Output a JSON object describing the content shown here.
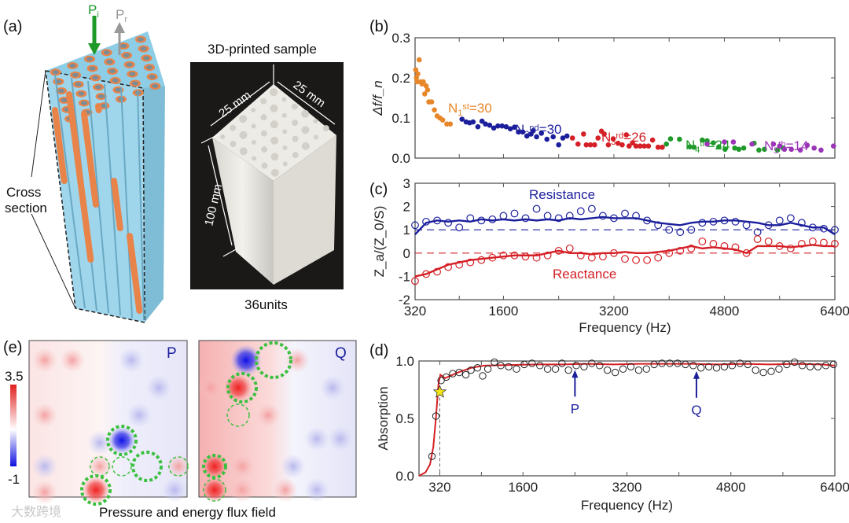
{
  "panel_labels": {
    "a": "(a)",
    "b": "(b)",
    "c": "(c)",
    "d": "(d)",
    "e": "(e)"
  },
  "panel_a": {
    "incident": {
      "base": "P",
      "sub": "i"
    },
    "reflected": {
      "base": "P",
      "sub": "r"
    },
    "cross_section": [
      "Cross",
      "section"
    ],
    "photo_title": "3D-printed sample",
    "dim_width_1": "25 mm",
    "dim_width_2": "25 mm",
    "dim_height": "100 mm",
    "photo_caption": "36units",
    "watermark": "大数跨境"
  },
  "panel_e": {
    "colorbar_max": "3.5",
    "colorbar_min": "-1",
    "map_p_label": "P",
    "map_q_label": "Q",
    "caption": "Pressure and energy flux field"
  },
  "colors": {
    "orange": "#e8862a",
    "blue": "#1c1f9c",
    "red": "#d42026",
    "green": "#1e9a2a",
    "purple": "#9b35b8",
    "resistance": "#1c1f9c",
    "reactance": "#d42026",
    "absorption_line": "#d42026",
    "arrow": "#1c1f9c"
  },
  "chart_data": [
    {
      "id": "b",
      "type": "scatter",
      "ylabel": "Δf/f_n",
      "xlabel": "",
      "xlim": [
        320,
        6400
      ],
      "ylim": [
        0,
        0.3
      ],
      "yticks": [
        "0.0",
        "0.1",
        "0.2",
        "0.3"
      ],
      "series": [
        {
          "name": "1st",
          "label": {
            "base": "N",
            "sub": "1",
            "sup": "st",
            "rest": "=30"
          },
          "color": "#e8862a",
          "points": [
            [
              330,
              0.22
            ],
            [
              340,
              0.2
            ],
            [
              350,
              0.19
            ],
            [
              360,
              0.21
            ],
            [
              380,
              0.245
            ],
            [
              400,
              0.19
            ],
            [
              420,
              0.185
            ],
            [
              440,
              0.19
            ],
            [
              460,
              0.16
            ],
            [
              480,
              0.18
            ],
            [
              500,
              0.17
            ],
            [
              520,
              0.14
            ],
            [
              560,
              0.14
            ],
            [
              600,
              0.12
            ],
            [
              640,
              0.105
            ],
            [
              680,
              0.1
            ],
            [
              720,
              0.095
            ],
            [
              780,
              0.085
            ],
            [
              830,
              0.085
            ]
          ]
        },
        {
          "name": "2nd",
          "label": {
            "base": "N",
            "sub": "2",
            "sup": "nd",
            "rest": "=30"
          },
          "color": "#1c1f9c",
          "points": [
            [
              1000,
              0.097
            ],
            [
              1060,
              0.09
            ],
            [
              1110,
              0.088
            ],
            [
              1160,
              0.09
            ],
            [
              1230,
              0.078
            ],
            [
              1290,
              0.092
            ],
            [
              1340,
              0.085
            ],
            [
              1400,
              0.082
            ],
            [
              1460,
              0.075
            ],
            [
              1520,
              0.08
            ],
            [
              1580,
              0.08
            ],
            [
              1640,
              0.078
            ],
            [
              1700,
              0.073
            ],
            [
              1760,
              0.077
            ],
            [
              1820,
              0.065
            ],
            [
              1880,
              0.065
            ],
            [
              1940,
              0.055
            ],
            [
              2000,
              0.06
            ],
            [
              2030,
              0.068
            ],
            [
              2080,
              0.053
            ],
            [
              2150,
              0.062
            ],
            [
              2230,
              0.047
            ],
            [
              2320,
              0.053
            ],
            [
              2400,
              0.033
            ],
            [
              2460,
              0.05
            ],
            [
              2520,
              0.055
            ]
          ]
        },
        {
          "name": "3rd",
          "label": {
            "base": "N",
            "sub": "3",
            "sup": "rd",
            "rest": "=26"
          },
          "color": "#d42026",
          "points": [
            [
              2600,
              0.05
            ],
            [
              2680,
              0.035
            ],
            [
              2760,
              0.06
            ],
            [
              2800,
              0.033
            ],
            [
              2860,
              0.033
            ],
            [
              2920,
              0.033
            ],
            [
              2970,
              0.05
            ],
            [
              3020,
              0.067
            ],
            [
              3060,
              0.06
            ],
            [
              3120,
              0.033
            ],
            [
              3190,
              0.048
            ],
            [
              3260,
              0.037
            ],
            [
              3320,
              0.033
            ],
            [
              3380,
              0.058
            ],
            [
              3420,
              0.03
            ],
            [
              3470,
              0.038
            ],
            [
              3520,
              0.03
            ],
            [
              3580,
              0.03
            ],
            [
              3640,
              0.03
            ],
            [
              3700,
              0.03
            ],
            [
              3760,
              0.045
            ],
            [
              3840,
              0.027
            ],
            [
              3900,
              0.027
            ]
          ]
        },
        {
          "name": "4th",
          "label": {
            "base": "N",
            "sub": "4",
            "sup": "th",
            "rest": "=24"
          },
          "color": "#1e9a2a",
          "points": [
            [
              3960,
              0.035
            ],
            [
              4020,
              0.048
            ],
            [
              4150,
              0.047
            ],
            [
              4300,
              0.028
            ],
            [
              4360,
              0.027
            ],
            [
              4480,
              0.045
            ],
            [
              4550,
              0.043
            ],
            [
              4640,
              0.038
            ],
            [
              4720,
              0.028
            ],
            [
              4810,
              0.022
            ],
            [
              4950,
              0.025
            ],
            [
              5010,
              0.022
            ],
            [
              5080,
              0.025
            ],
            [
              5230,
              0.037
            ],
            [
              5300,
              0.02
            ],
            [
              5380,
              0.022
            ],
            [
              5570,
              0.02
            ],
            [
              5650,
              0.025
            ]
          ]
        },
        {
          "name": "5th",
          "label": {
            "base": "N",
            "sub": "5",
            "sup": "th",
            "rest": "=14"
          },
          "color": "#9b35b8",
          "points": [
            [
              4550,
              0.035
            ],
            [
              4800,
              0.04
            ],
            [
              4930,
              0.04
            ],
            [
              5200,
              0.035
            ],
            [
              5510,
              0.035
            ],
            [
              5600,
              0.03
            ],
            [
              5670,
              0.022
            ],
            [
              5770,
              0.022
            ],
            [
              5900,
              0.02
            ],
            [
              6000,
              0.032
            ],
            [
              6100,
              0.025
            ],
            [
              6200,
              0.02
            ],
            [
              6380,
              0.03
            ]
          ]
        }
      ]
    },
    {
      "id": "c",
      "type": "line",
      "ylabel": "Z_a/(Z_0/S)",
      "xlabel": "Frequency (Hz)",
      "xlim": [
        320,
        6400
      ],
      "ylim": [
        -2,
        3
      ],
      "xticks": [
        "320",
        "1600",
        "3200",
        "4800",
        "6400"
      ],
      "yticks": [
        "-2",
        "-1",
        "0",
        "1",
        "2",
        "3"
      ],
      "x_start": 320,
      "x_step": 160,
      "reference_lines": [
        1,
        0
      ],
      "series": [
        {
          "name": "Resistance",
          "style": "line",
          "color": "#1c1f9c",
          "values": [
            0.8,
            1.3,
            1.4,
            1.35,
            1.4,
            1.35,
            1.45,
            1.4,
            1.45,
            1.4,
            1.45,
            1.4,
            1.45,
            1.4,
            1.5,
            1.45,
            1.5,
            1.55,
            1.5,
            1.5,
            1.5,
            1.4,
            1.3,
            1.25,
            1.2,
            1.3,
            1.35,
            1.35,
            1.4,
            1.4,
            1.35,
            1.3,
            1.2,
            1.2,
            1.3,
            1.2,
            1.1,
            1.1,
            0.8
          ]
        },
        {
          "name": "Resistance (measured)",
          "style": "circles",
          "color": "#1c1f9c",
          "values": [
            1.2,
            1.35,
            1.4,
            1.3,
            1.1,
            1.5,
            1.4,
            1.45,
            1.6,
            1.7,
            1.5,
            1.9,
            1.6,
            1.5,
            1.6,
            1.8,
            1.9,
            1.6,
            1.5,
            1.7,
            1.6,
            1.4,
            1.2,
            1.0,
            0.9,
            1.0,
            1.3,
            1.35,
            1.4,
            1.35,
            1.2,
            0.9,
            1.2,
            1.4,
            1.5,
            1.3,
            1.1,
            1.05,
            1.0
          ]
        },
        {
          "name": "Reactance",
          "style": "line",
          "color": "#d42026",
          "values": [
            -1.0,
            -0.9,
            -0.7,
            -0.5,
            -0.4,
            -0.3,
            -0.25,
            -0.2,
            -0.15,
            -0.1,
            -0.1,
            -0.1,
            0.0,
            0.1,
            0.0,
            0.0,
            -0.05,
            0.0,
            0.0,
            0.05,
            0.0,
            0.0,
            0.05,
            0.1,
            0.2,
            0.3,
            0.2,
            0.25,
            0.2,
            0.15,
            0.0,
            0.3,
            0.3,
            0.3,
            0.25,
            0.3,
            0.35,
            0.3,
            0.3
          ]
        },
        {
          "name": "Reactance (measured)",
          "style": "circles",
          "color": "#d42026",
          "values": [
            -1.2,
            -0.9,
            -0.8,
            -0.6,
            -0.5,
            -0.4,
            -0.3,
            -0.2,
            -0.1,
            -0.1,
            -0.15,
            -0.2,
            -0.1,
            0.1,
            0.2,
            -0.1,
            -0.2,
            -0.15,
            0.0,
            -0.25,
            -0.3,
            -0.3,
            -0.2,
            0.0,
            0.1,
            0.2,
            0.5,
            0.4,
            0.3,
            0.25,
            0.0,
            0.6,
            0.5,
            0.3,
            0.2,
            0.4,
            0.5,
            0.45,
            0.4
          ]
        }
      ],
      "annotations": [
        "Resistance",
        "Reactance"
      ]
    },
    {
      "id": "d",
      "type": "line",
      "ylabel": "Absorption",
      "xlabel": "Frequency (Hz)",
      "xlim": [
        0,
        6400
      ],
      "ylim": [
        0,
        1
      ],
      "xticks": [
        "320",
        "1600",
        "3200",
        "4800",
        "6400"
      ],
      "yticks": [
        "0.0",
        "0.5",
        "1.0"
      ],
      "line": [
        [
          0,
          0
        ],
        [
          100,
          0.03
        ],
        [
          170,
          0.1
        ],
        [
          220,
          0.25
        ],
        [
          260,
          0.5
        ],
        [
          300,
          0.8
        ],
        [
          330,
          0.88
        ],
        [
          400,
          0.85
        ],
        [
          600,
          0.9
        ],
        [
          800,
          0.94
        ],
        [
          1000,
          0.96
        ],
        [
          1400,
          0.965
        ],
        [
          1800,
          0.97
        ],
        [
          2200,
          0.97
        ],
        [
          2600,
          0.975
        ],
        [
          3000,
          0.97
        ],
        [
          3400,
          0.975
        ],
        [
          3800,
          0.975
        ],
        [
          4200,
          0.975
        ],
        [
          4600,
          0.97
        ],
        [
          5000,
          0.975
        ],
        [
          5400,
          0.97
        ],
        [
          5800,
          0.975
        ],
        [
          6200,
          0.97
        ],
        [
          6400,
          0.96
        ]
      ],
      "circles": [
        [
          200,
          0.17
        ],
        [
          260,
          0.52
        ],
        [
          340,
          0.83
        ],
        [
          420,
          0.86
        ],
        [
          520,
          0.89
        ],
        [
          620,
          0.9
        ],
        [
          720,
          0.88
        ],
        [
          800,
          0.92
        ],
        [
          900,
          0.94
        ],
        [
          980,
          0.87
        ],
        [
          1060,
          0.93
        ],
        [
          1160,
          0.99
        ],
        [
          1260,
          0.96
        ],
        [
          1380,
          0.95
        ],
        [
          1500,
          0.93
        ],
        [
          1620,
          0.97
        ],
        [
          1740,
          0.98
        ],
        [
          1860,
          0.96
        ],
        [
          1980,
          0.93
        ],
        [
          2100,
          0.93
        ],
        [
          2200,
          0.98
        ],
        [
          2300,
          0.92
        ],
        [
          2420,
          0.96
        ],
        [
          2540,
          0.95
        ],
        [
          2660,
          0.98
        ],
        [
          2780,
          0.96
        ],
        [
          2900,
          0.92
        ],
        [
          3020,
          0.9
        ],
        [
          3140,
          0.93
        ],
        [
          3260,
          0.95
        ],
        [
          3380,
          0.92
        ],
        [
          3500,
          0.93
        ],
        [
          3620,
          0.97
        ],
        [
          3740,
          0.98
        ],
        [
          3860,
          0.98
        ],
        [
          3980,
          0.98
        ],
        [
          4100,
          0.97
        ],
        [
          4220,
          0.96
        ],
        [
          4340,
          0.94
        ],
        [
          4460,
          0.95
        ],
        [
          4580,
          0.94
        ],
        [
          4700,
          0.95
        ],
        [
          4820,
          0.96
        ],
        [
          4940,
          0.98
        ],
        [
          5060,
          0.97
        ],
        [
          5180,
          0.92
        ],
        [
          5300,
          0.9
        ],
        [
          5420,
          0.91
        ],
        [
          5540,
          0.93
        ],
        [
          5660,
          0.97
        ],
        [
          5780,
          0.99
        ],
        [
          5900,
          0.96
        ],
        [
          6020,
          0.95
        ],
        [
          6140,
          0.95
        ],
        [
          6260,
          0.96
        ],
        [
          6380,
          0.97
        ]
      ],
      "star": [
        320,
        0.73
      ],
      "arrows": [
        {
          "label": "P",
          "x": 2400,
          "y": 0.95
        },
        {
          "label": "Q",
          "x": 4270,
          "y": 0.94
        }
      ]
    }
  ]
}
